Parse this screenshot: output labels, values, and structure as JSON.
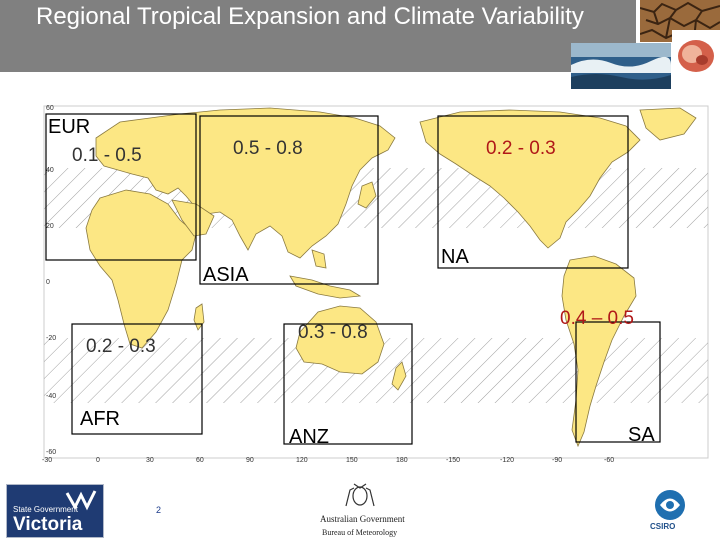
{
  "title": "Regional Tropical Expansion and Climate Variability",
  "slide_number": "2",
  "photos": [
    "cracked-earth-photo",
    "ocean-wave-photo",
    "flame-photo"
  ],
  "map": {
    "lat_ticks": [
      "60",
      "40",
      "20",
      "0",
      "-20",
      "-40",
      "-60"
    ],
    "lon_ticks": [
      "-30",
      "0",
      "30",
      "60",
      "90",
      "120",
      "150",
      "180",
      "-150",
      "-120",
      "-90",
      "-60"
    ],
    "regions": [
      {
        "name": "EUR",
        "range": "0.1 - 0.5"
      },
      {
        "name": "ASIA",
        "range": "0.5 - 0.8"
      },
      {
        "name": "NA",
        "range": "0.2 - 0.3"
      },
      {
        "name": "AFR",
        "range": "0.2 - 0.3"
      },
      {
        "name": "ANZ",
        "range": "0.3 - 0.8"
      },
      {
        "name": "SA",
        "range": "0.4 – 0.5"
      }
    ],
    "land_color": "#fce784",
    "hatch_color": "#a0a0a0",
    "highlight_color": "#b01818"
  },
  "footer": {
    "victoria_small": "State Government",
    "victoria_big": "Victoria",
    "gov_line1": "Australian Government",
    "gov_line2": "Bureau of Meteorology",
    "csiro": "CSIRO"
  }
}
